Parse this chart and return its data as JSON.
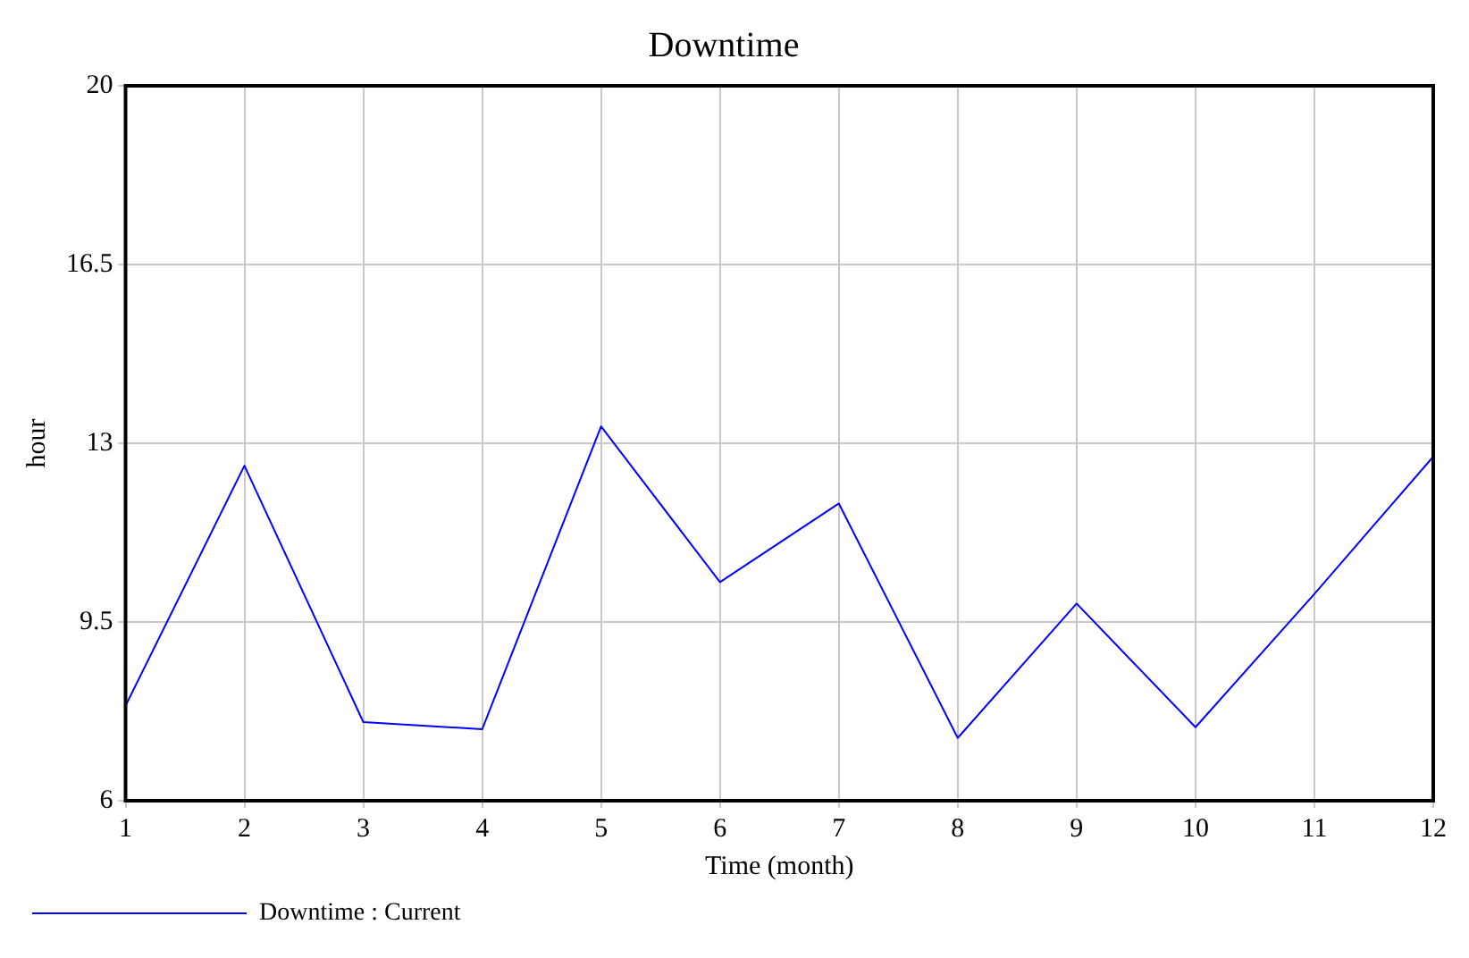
{
  "chart_data": {
    "type": "line",
    "title": "Downtime",
    "xlabel": "Time (month)",
    "ylabel": "hour",
    "x": [
      1,
      2,
      3,
      4,
      5,
      6,
      7,
      8,
      9,
      10,
      11,
      12
    ],
    "series": [
      {
        "name": "Downtime : Current",
        "color": "#0000ff",
        "values": [
          7.86,
          12.56,
          7.54,
          7.4,
          13.33,
          10.28,
          11.82,
          7.23,
          9.86,
          7.44,
          10.05,
          12.74
        ]
      }
    ],
    "xlim": [
      1,
      12
    ],
    "xticks": [
      1,
      2,
      3,
      4,
      5,
      6,
      7,
      8,
      9,
      10,
      11,
      12
    ],
    "ylim": [
      6,
      20
    ],
    "yticks": [
      6,
      9.5,
      13,
      16.5,
      20
    ],
    "grid": true,
    "legend": "bottom left",
    "marker": "none",
    "line_style": "solid"
  }
}
